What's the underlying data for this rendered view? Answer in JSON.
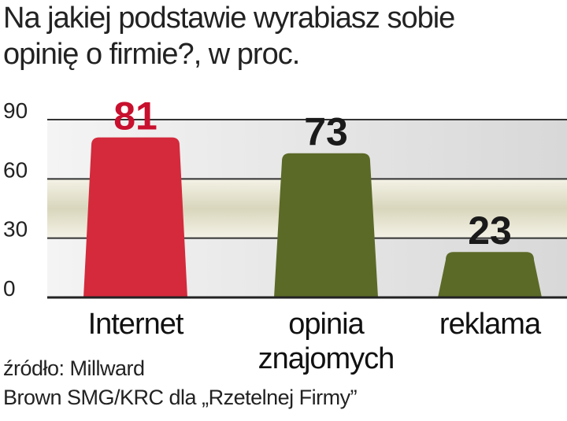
{
  "chart_data": {
    "type": "bar",
    "title": [
      "Na jakiej podstawie wyrabiasz sobie",
      "opinię o firmie?, w proc."
    ],
    "categories": [
      "Internet",
      "opinia znajomych",
      "reklama"
    ],
    "values": [
      81,
      73,
      23
    ],
    "colors": [
      "#d42a3c",
      "#5b6a27",
      "#5b6a27"
    ],
    "value_label_colors": [
      "#c8102e",
      "#1a1a1a",
      "#1a1a1a"
    ],
    "ylim": [
      0,
      90
    ],
    "yticks": [
      0,
      30,
      60,
      90
    ],
    "grid": true,
    "source": [
      "źródło: Millward",
      "Brown SMG/KRC dla „Rzetelnej Firmy”"
    ]
  }
}
